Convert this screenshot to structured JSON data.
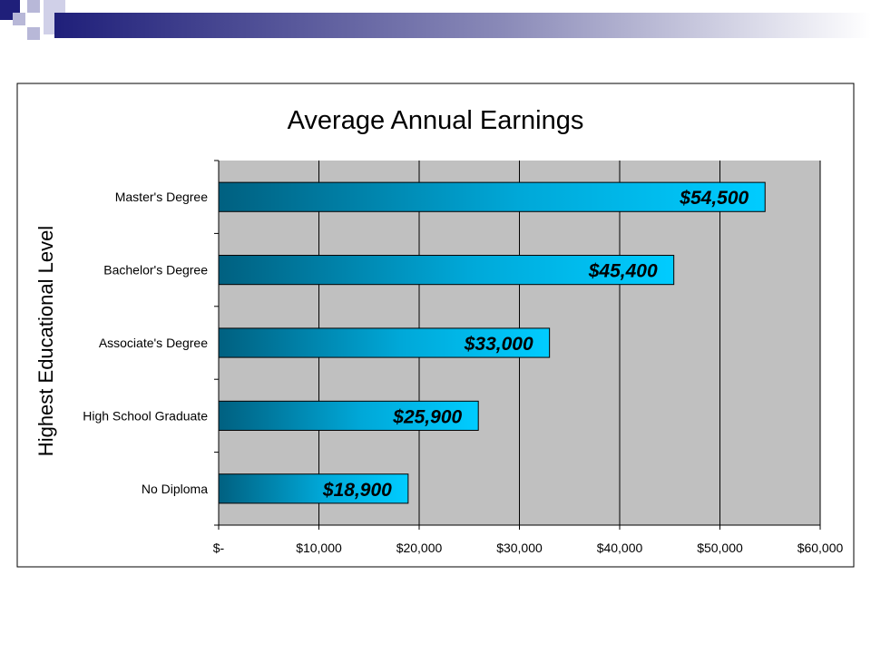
{
  "chart_data": {
    "type": "bar",
    "orientation": "horizontal",
    "title": "Average Annual Earnings",
    "ylabel": "Highest Educational Level",
    "xlabel": "",
    "categories": [
      "Master's Degree",
      "Bachelor's Degree",
      "Associate's Degree",
      "High School Graduate",
      "No Diploma"
    ],
    "values": [
      54500,
      45400,
      33000,
      25900,
      18900
    ],
    "data_labels": [
      "$54,500",
      "$45,400",
      "$33,000",
      "$25,900",
      "$18,900"
    ],
    "xlim": [
      0,
      60000
    ],
    "x_ticks": [
      0,
      10000,
      20000,
      30000,
      40000,
      50000,
      60000
    ],
    "x_tick_labels": [
      "$-",
      "$10,000",
      "$20,000",
      "$30,000",
      "$40,000",
      "$50,000",
      "$60,000"
    ],
    "grid": true,
    "legend": "none"
  },
  "colors": {
    "plot_background": "#c0c0c0",
    "bar_light": "#00ccff",
    "bar_dark": "#006080",
    "deco_navy": "#1f1f7a"
  }
}
